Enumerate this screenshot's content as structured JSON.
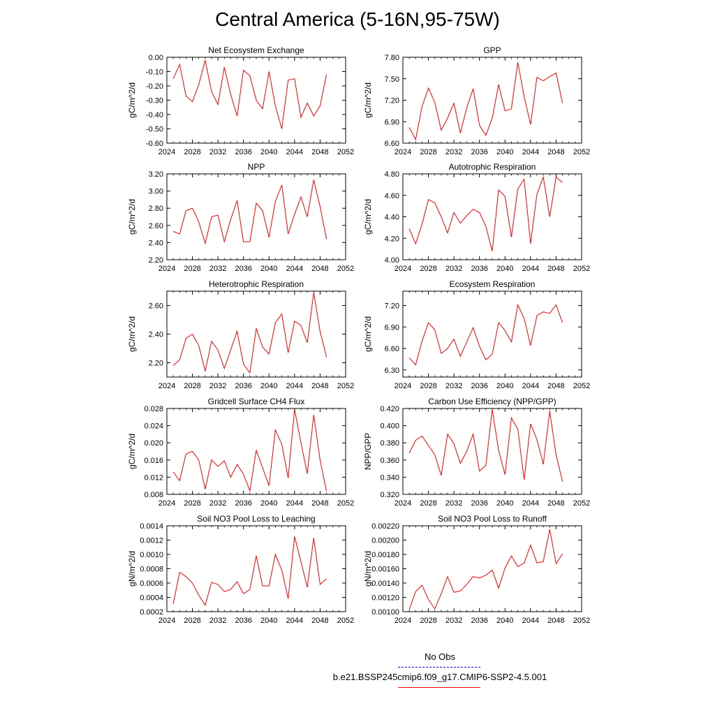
{
  "title": "Central America (5-16N,95-75W)",
  "legend": {
    "obs_label": "No Obs",
    "obs_color": "#0000ff",
    "model_label": "b.e21.BSSP245cmip6.f09_g17.CMIP6-SSP2-4.5.001",
    "model_color": "#ff0000"
  },
  "chart_data": [
    {
      "type": "line",
      "title": "Net Ecosystem Exchange",
      "ylabel": "gC/m^2/d",
      "xlim": [
        2024,
        2052
      ],
      "xticks": [
        "2024",
        "2028",
        "2032",
        "2036",
        "2040",
        "2044",
        "2048",
        "2052"
      ],
      "ylim": [
        -0.6,
        0.0
      ],
      "yticks": [
        "0.00",
        "-0.10",
        "-0.20",
        "-0.30",
        "-0.40",
        "-0.50",
        "-0.60"
      ],
      "ytick_values": [
        0.0,
        -0.1,
        -0.2,
        -0.3,
        -0.4,
        -0.5,
        -0.6
      ],
      "series": [
        {
          "color": "#ff0000",
          "x": [
            2025,
            2026,
            2027,
            2028,
            2029,
            2030,
            2031,
            2032,
            2033,
            2034,
            2035,
            2036,
            2037,
            2038,
            2039,
            2040,
            2041,
            2042,
            2043,
            2044,
            2045,
            2046,
            2047,
            2048,
            2049
          ],
          "values": [
            -0.15,
            -0.05,
            -0.27,
            -0.31,
            -0.19,
            -0.02,
            -0.24,
            -0.33,
            -0.07,
            -0.26,
            -0.41,
            -0.09,
            -0.13,
            -0.3,
            -0.36,
            -0.1,
            -0.34,
            -0.5,
            -0.16,
            -0.15,
            -0.42,
            -0.32,
            -0.41,
            -0.34,
            -0.12
          ]
        }
      ]
    },
    {
      "type": "line",
      "title": "GPP",
      "ylabel": "gC/m^2/d",
      "xlim": [
        2024,
        2052
      ],
      "xticks": [
        "2024",
        "2028",
        "2032",
        "2036",
        "2040",
        "2044",
        "2048",
        "2052"
      ],
      "ylim": [
        6.6,
        7.8
      ],
      "yticks": [
        "7.80",
        "7.50",
        "7.20",
        "6.90",
        "6.60"
      ],
      "ytick_values": [
        7.8,
        7.5,
        7.2,
        6.9,
        6.6
      ],
      "series": [
        {
          "color": "#ff0000",
          "x": [
            2025,
            2026,
            2027,
            2028,
            2029,
            2030,
            2031,
            2032,
            2033,
            2034,
            2035,
            2036,
            2037,
            2038,
            2039,
            2040,
            2041,
            2042,
            2043,
            2044,
            2045,
            2046,
            2047,
            2048,
            2049
          ],
          "values": [
            6.82,
            6.65,
            7.11,
            7.37,
            7.17,
            6.78,
            6.95,
            7.16,
            6.74,
            7.09,
            7.36,
            6.85,
            6.71,
            6.95,
            7.42,
            7.05,
            7.08,
            7.73,
            7.25,
            6.86,
            7.52,
            7.47,
            7.53,
            7.58,
            7.16
          ]
        }
      ]
    },
    {
      "type": "line",
      "title": "NPP",
      "ylabel": "gC/m^2/d",
      "xlim": [
        2024,
        2052
      ],
      "xticks": [
        "2024",
        "2028",
        "2032",
        "2036",
        "2040",
        "2044",
        "2048",
        "2052"
      ],
      "ylim": [
        2.2,
        3.2
      ],
      "yticks": [
        "3.20",
        "3.00",
        "2.80",
        "2.60",
        "2.40",
        "2.20"
      ],
      "ytick_values": [
        3.2,
        3.0,
        2.8,
        2.6,
        2.4,
        2.2
      ],
      "series": [
        {
          "color": "#ff0000",
          "x": [
            2025,
            2026,
            2027,
            2028,
            2029,
            2030,
            2031,
            2032,
            2033,
            2034,
            2035,
            2036,
            2037,
            2038,
            2039,
            2040,
            2041,
            2042,
            2043,
            2044,
            2045,
            2046,
            2047,
            2048,
            2049
          ],
          "values": [
            2.53,
            2.5,
            2.77,
            2.8,
            2.64,
            2.39,
            2.7,
            2.72,
            2.41,
            2.67,
            2.89,
            2.41,
            2.41,
            2.86,
            2.77,
            2.46,
            2.88,
            3.07,
            2.5,
            2.73,
            2.93,
            2.7,
            3.13,
            2.82,
            2.44
          ]
        }
      ]
    },
    {
      "type": "line",
      "title": "Autotrophic Respiration",
      "ylabel": "gC/m^2/d",
      "xlim": [
        2024,
        2052
      ],
      "xticks": [
        "2024",
        "2028",
        "2032",
        "2036",
        "2040",
        "2044",
        "2048",
        "2052"
      ],
      "ylim": [
        4.0,
        4.8
      ],
      "yticks": [
        "4.80",
        "4.60",
        "4.40",
        "4.20",
        "4.00"
      ],
      "ytick_values": [
        4.8,
        4.6,
        4.4,
        4.2,
        4.0
      ],
      "series": [
        {
          "color": "#ff0000",
          "x": [
            2025,
            2026,
            2027,
            2028,
            2029,
            2030,
            2031,
            2032,
            2033,
            2034,
            2035,
            2036,
            2037,
            2038,
            2039,
            2040,
            2041,
            2042,
            2043,
            2044,
            2045,
            2046,
            2047,
            2048,
            2049
          ],
          "values": [
            4.29,
            4.15,
            4.33,
            4.56,
            4.53,
            4.4,
            4.25,
            4.44,
            4.34,
            4.41,
            4.47,
            4.44,
            4.31,
            4.08,
            4.65,
            4.59,
            4.21,
            4.66,
            4.75,
            4.15,
            4.61,
            4.77,
            4.4,
            4.77,
            4.72
          ]
        }
      ]
    },
    {
      "type": "line",
      "title": "Heterotrophic Respiration",
      "ylabel": "gC/m^2/d",
      "xlim": [
        2024,
        2052
      ],
      "xticks": [
        "2024",
        "2028",
        "2032",
        "2036",
        "2040",
        "2044",
        "2048",
        "2052"
      ],
      "ylim": [
        2.1,
        2.7
      ],
      "yticks": [
        "2.60",
        "2.40",
        "2.20"
      ],
      "ytick_values": [
        2.6,
        2.4,
        2.2
      ],
      "series": [
        {
          "color": "#ff0000",
          "x": [
            2025,
            2026,
            2027,
            2028,
            2029,
            2030,
            2031,
            2032,
            2033,
            2034,
            2035,
            2036,
            2037,
            2038,
            2039,
            2040,
            2041,
            2042,
            2043,
            2044,
            2045,
            2046,
            2047,
            2048,
            2049
          ],
          "values": [
            2.18,
            2.22,
            2.37,
            2.4,
            2.32,
            2.14,
            2.35,
            2.29,
            2.16,
            2.29,
            2.42,
            2.19,
            2.13,
            2.44,
            2.31,
            2.26,
            2.48,
            2.54,
            2.27,
            2.49,
            2.46,
            2.34,
            2.69,
            2.42,
            2.24
          ]
        }
      ]
    },
    {
      "type": "line",
      "title": "Ecosystem Respiration",
      "ylabel": "gC/m^2/d",
      "xlim": [
        2024,
        2052
      ],
      "xticks": [
        "2024",
        "2028",
        "2032",
        "2036",
        "2040",
        "2044",
        "2048",
        "2052"
      ],
      "ylim": [
        6.2,
        7.4
      ],
      "yticks": [
        "7.20",
        "6.90",
        "6.60",
        "6.30"
      ],
      "ytick_values": [
        7.2,
        6.9,
        6.6,
        6.3
      ],
      "series": [
        {
          "color": "#ff0000",
          "x": [
            2025,
            2026,
            2027,
            2028,
            2029,
            2030,
            2031,
            2032,
            2033,
            2034,
            2035,
            2036,
            2037,
            2038,
            2039,
            2040,
            2041,
            2042,
            2043,
            2044,
            2045,
            2046,
            2047,
            2048,
            2049
          ],
          "values": [
            6.47,
            6.37,
            6.7,
            6.96,
            6.86,
            6.53,
            6.6,
            6.73,
            6.49,
            6.69,
            6.89,
            6.63,
            6.44,
            6.52,
            6.96,
            6.85,
            6.69,
            7.21,
            7.02,
            6.64,
            7.06,
            7.11,
            7.09,
            7.21,
            6.96
          ]
        }
      ]
    },
    {
      "type": "line",
      "title": "Gridcell Surface CH4 Flux",
      "ylabel": "gC/m^2/d",
      "xlim": [
        2024,
        2052
      ],
      "xticks": [
        "2024",
        "2028",
        "2032",
        "2036",
        "2040",
        "2044",
        "2048",
        "2052"
      ],
      "ylim": [
        0.008,
        0.028
      ],
      "yticks": [
        "0.028",
        "0.024",
        "0.020",
        "0.016",
        "0.012",
        "0.008"
      ],
      "ytick_values": [
        0.028,
        0.024,
        0.02,
        0.016,
        0.012,
        0.008
      ],
      "series": [
        {
          "color": "#ff0000",
          "x": [
            2025,
            2026,
            2027,
            2028,
            2029,
            2030,
            2031,
            2032,
            2033,
            2034,
            2035,
            2036,
            2037,
            2038,
            2039,
            2040,
            2041,
            2042,
            2043,
            2044,
            2045,
            2046,
            2047,
            2048,
            2049
          ],
          "values": [
            0.0132,
            0.0112,
            0.0174,
            0.018,
            0.016,
            0.0092,
            0.016,
            0.0145,
            0.0158,
            0.012,
            0.015,
            0.0127,
            0.0088,
            0.0183,
            0.0142,
            0.01,
            0.023,
            0.0197,
            0.0118,
            0.0278,
            0.02,
            0.0128,
            0.0265,
            0.016,
            0.0087
          ]
        }
      ]
    },
    {
      "type": "line",
      "title": "Carbon Use Efficiency (NPP/GPP)",
      "ylabel": "NPP/GPP",
      "xlim": [
        2024,
        2052
      ],
      "xticks": [
        "2024",
        "2028",
        "2032",
        "2036",
        "2040",
        "2044",
        "2048",
        "2052"
      ],
      "ylim": [
        0.32,
        0.42
      ],
      "yticks": [
        "0.420",
        "0.400",
        "0.380",
        "0.360",
        "0.340",
        "0.320"
      ],
      "ytick_values": [
        0.42,
        0.4,
        0.38,
        0.36,
        0.34,
        0.32
      ],
      "series": [
        {
          "color": "#ff0000",
          "x": [
            2025,
            2026,
            2027,
            2028,
            2029,
            2030,
            2031,
            2032,
            2033,
            2034,
            2035,
            2036,
            2037,
            2038,
            2039,
            2040,
            2041,
            2042,
            2043,
            2044,
            2045,
            2046,
            2047,
            2048,
            2049
          ],
          "values": [
            0.368,
            0.383,
            0.388,
            0.377,
            0.366,
            0.342,
            0.39,
            0.379,
            0.356,
            0.37,
            0.39,
            0.347,
            0.354,
            0.419,
            0.371,
            0.343,
            0.409,
            0.396,
            0.337,
            0.402,
            0.384,
            0.355,
            0.417,
            0.366,
            0.335
          ]
        }
      ]
    },
    {
      "type": "line",
      "title": "Soil NO3 Pool Loss to Leaching",
      "ylabel": "gN/m^2/d",
      "xlim": [
        2024,
        2052
      ],
      "xticks": [
        "2024",
        "2028",
        "2032",
        "2036",
        "2040",
        "2044",
        "2048",
        "2052"
      ],
      "ylim": [
        0.0002,
        0.0014
      ],
      "yticks": [
        "0.0014",
        "0.0012",
        "0.0010",
        "0.0008",
        "0.0006",
        "0.0004",
        "0.0002"
      ],
      "ytick_values": [
        0.0014,
        0.0012,
        0.001,
        0.0008,
        0.0006,
        0.0004,
        0.0002
      ],
      "series": [
        {
          "color": "#ff0000",
          "x": [
            2025,
            2026,
            2027,
            2028,
            2029,
            2030,
            2031,
            2032,
            2033,
            2034,
            2035,
            2036,
            2037,
            2038,
            2039,
            2040,
            2041,
            2042,
            2043,
            2044,
            2045,
            2046,
            2047,
            2048,
            2049
          ],
          "values": [
            0.00031,
            0.00075,
            0.00069,
            0.0006,
            0.00043,
            0.00029,
            0.00061,
            0.00058,
            0.00048,
            0.00051,
            0.00062,
            0.00045,
            0.00051,
            0.00098,
            0.00056,
            0.00056,
            0.001,
            0.00078,
            0.00038,
            0.00125,
            0.0009,
            0.00054,
            0.00123,
            0.00058,
            0.00066
          ]
        }
      ]
    },
    {
      "type": "line",
      "title": "Soil NO3 Pool Loss to Runoff",
      "ylabel": "gN/m^2/d",
      "xlim": [
        2024,
        2052
      ],
      "xticks": [
        "2024",
        "2028",
        "2032",
        "2036",
        "2040",
        "2044",
        "2048",
        "2052"
      ],
      "ylim": [
        0.001,
        0.0022
      ],
      "yticks": [
        "0.00220",
        "0.00200",
        "0.00180",
        "0.00160",
        "0.00140",
        "0.00120",
        "0.00100"
      ],
      "ytick_values": [
        0.0022,
        0.002,
        0.0018,
        0.0016,
        0.0014,
        0.0012,
        0.001
      ],
      "series": [
        {
          "color": "#ff0000",
          "x": [
            2025,
            2026,
            2027,
            2028,
            2029,
            2030,
            2031,
            2032,
            2033,
            2034,
            2035,
            2036,
            2037,
            2038,
            2039,
            2040,
            2041,
            2042,
            2043,
            2044,
            2045,
            2046,
            2047,
            2048,
            2049
          ],
          "values": [
            0.00103,
            0.00128,
            0.00137,
            0.00117,
            0.00104,
            0.00125,
            0.00149,
            0.00127,
            0.00129,
            0.00138,
            0.00149,
            0.00147,
            0.00151,
            0.00158,
            0.00133,
            0.00161,
            0.00178,
            0.00163,
            0.00168,
            0.00193,
            0.00168,
            0.0017,
            0.00215,
            0.00167,
            0.00181
          ]
        }
      ]
    }
  ]
}
